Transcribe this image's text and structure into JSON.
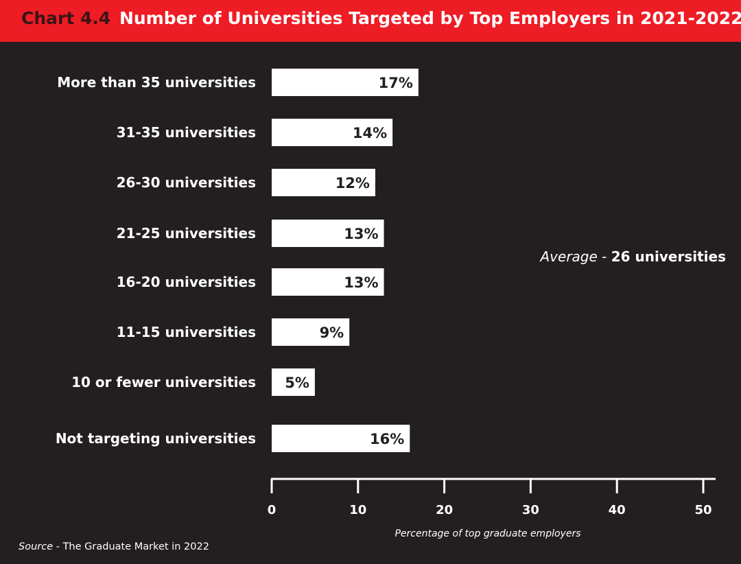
{
  "header": {
    "chart_number": "Chart 4.4",
    "title": "Number of Universities Targeted by Top Employers in 2021-2022"
  },
  "annotation": {
    "prefix": "Average",
    "separator": " - ",
    "value": "26 universities"
  },
  "source": {
    "label": "Source",
    "separator": " - ",
    "text": "The Graduate Market in 2022"
  },
  "colors": {
    "background": "#231f20",
    "header": "#ee1c25",
    "bar": "#ffffff",
    "bar_label": "#231f20"
  },
  "chart_data": {
    "type": "bar",
    "orientation": "horizontal",
    "title": "Number of Universities Targeted by Top Employers in 2021-2022",
    "xlabel": "Percentage of top graduate employers",
    "ylabel": "",
    "categories": [
      "More than 35 universities",
      "31-35 universities",
      "26-30 universities",
      "21-25 universities",
      "16-20 universities",
      "11-15 universities",
      "10 or fewer universities",
      "Not targeting universities"
    ],
    "values": [
      17,
      14,
      12,
      13,
      13,
      9,
      5,
      16
    ],
    "value_labels": [
      "17%",
      "14%",
      "12%",
      "13%",
      "13%",
      "9%",
      "5%",
      "16%"
    ],
    "xlim": [
      0,
      50
    ],
    "xticks": [
      0,
      10,
      20,
      30,
      40,
      50
    ],
    "grid": false,
    "legend": "none"
  }
}
